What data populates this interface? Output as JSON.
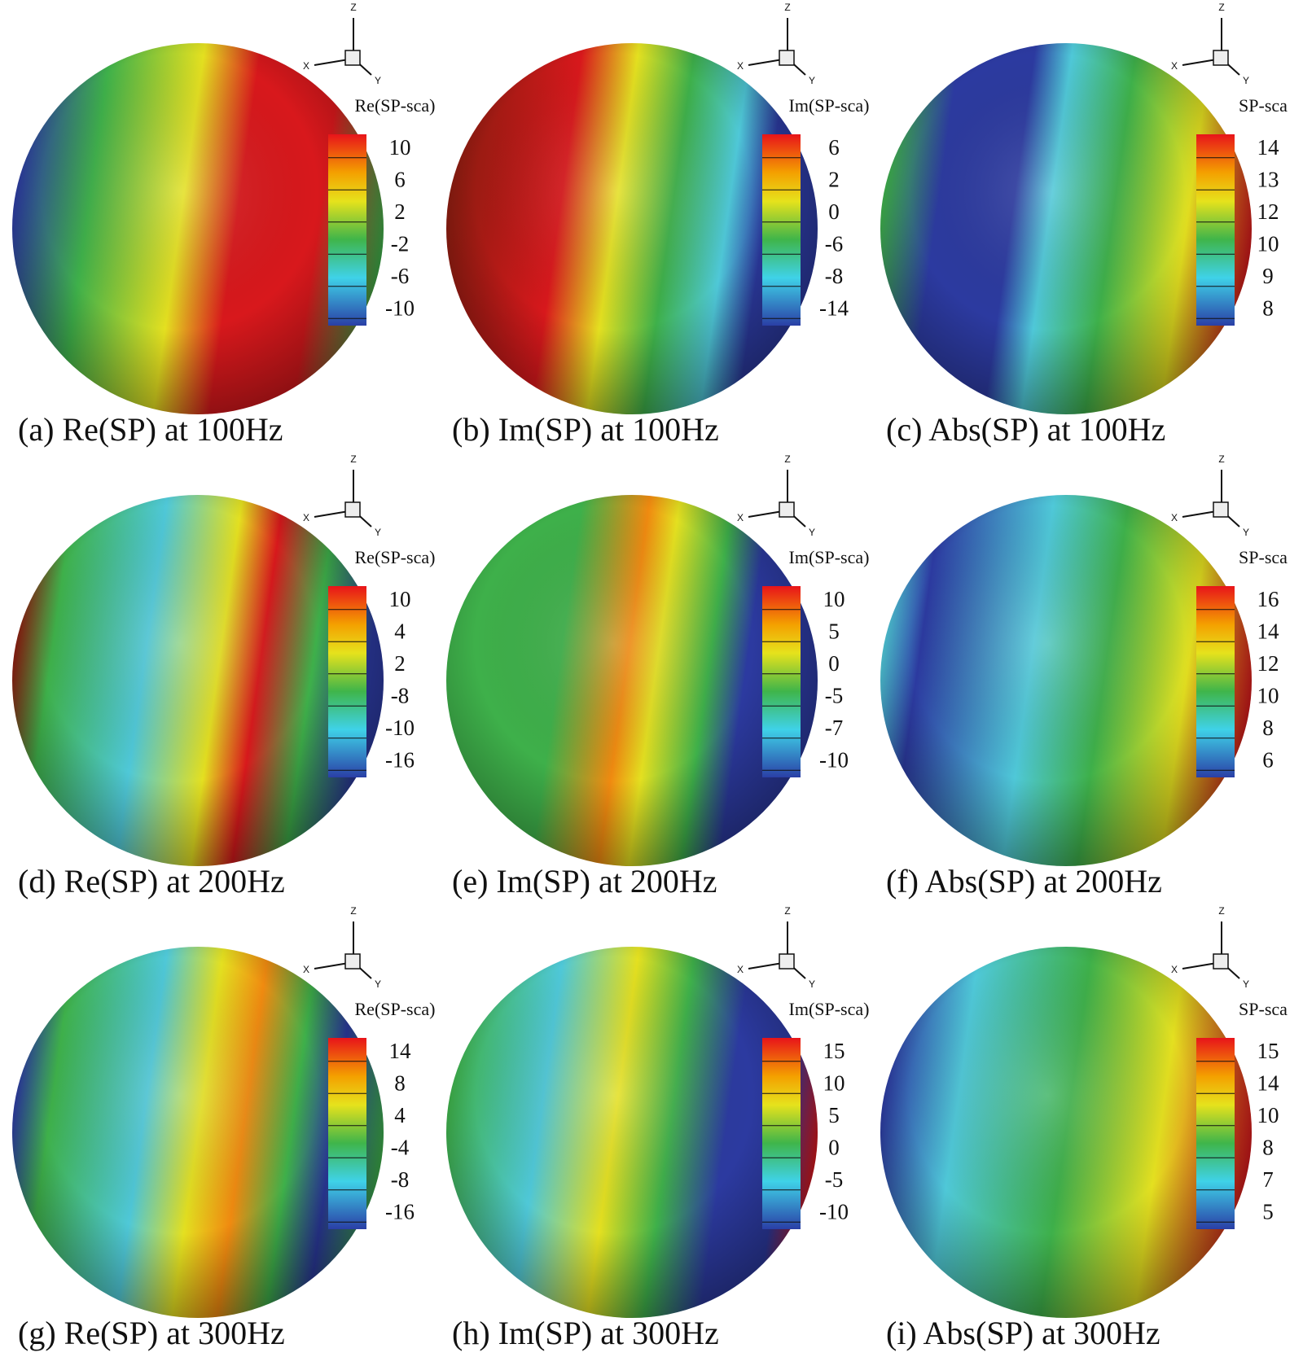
{
  "axis_labels": {
    "x": "X",
    "y": "Y",
    "z": "Z"
  },
  "panels": [
    {
      "caption": "(a) Re(SP) at 100Hz",
      "legend_title": "Re(SP-sca)",
      "colorbar_labels": [
        10,
        6,
        2,
        -2,
        -6,
        -10
      ]
    },
    {
      "caption": "(b) Im(SP) at 100Hz",
      "legend_title": "Im(SP-sca)",
      "colorbar_labels": [
        6,
        2,
        0,
        -6,
        -8,
        -14
      ]
    },
    {
      "caption": "(c) Abs(SP) at 100Hz",
      "legend_title": "SP-sca",
      "colorbar_labels": [
        14,
        13,
        12,
        10,
        9,
        8
      ]
    },
    {
      "caption": "(d) Re(SP) at 200Hz",
      "legend_title": "Re(SP-sca)",
      "colorbar_labels": [
        10,
        4,
        2,
        -8,
        -10,
        -16
      ]
    },
    {
      "caption": "(e) Im(SP) at 200Hz",
      "legend_title": "Im(SP-sca)",
      "colorbar_labels": [
        10,
        5,
        0,
        -5,
        -7,
        -10
      ]
    },
    {
      "caption": "(f) Abs(SP) at 200Hz",
      "legend_title": "SP-sca",
      "colorbar_labels": [
        16,
        14,
        12,
        10,
        8,
        6
      ]
    },
    {
      "caption": "(g) Re(SP) at 300Hz",
      "legend_title": "Re(SP-sca)",
      "colorbar_labels": [
        14,
        8,
        4,
        -4,
        -8,
        -16
      ]
    },
    {
      "caption": "(h) Im(SP) at 300Hz",
      "legend_title": "Im(SP-sca)",
      "colorbar_labels": [
        15,
        10,
        5,
        0,
        -5,
        -10
      ]
    },
    {
      "caption": "(i) Abs(SP) at 300Hz",
      "legend_title": "SP-sca",
      "colorbar_labels": [
        15,
        14,
        10,
        8,
        7,
        5
      ]
    }
  ]
}
